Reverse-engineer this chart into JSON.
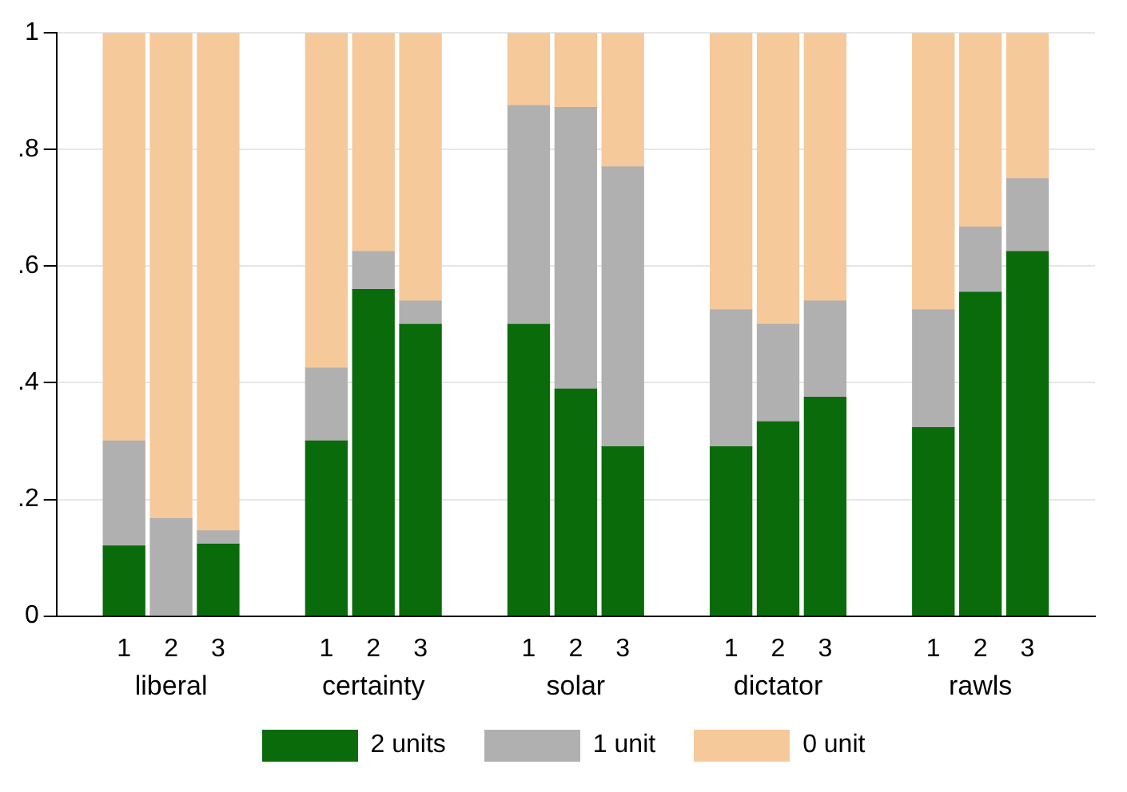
{
  "chart_data": {
    "type": "bar",
    "stacked": true,
    "categories": [
      "1",
      "2",
      "3",
      "1",
      "2",
      "3",
      "1",
      "2",
      "3",
      "1",
      "2",
      "3",
      "1",
      "2",
      "3"
    ],
    "annotations": [
      "liberal",
      "certainty",
      "solar",
      "dictator",
      "rawls"
    ],
    "series": [
      {
        "name": "2 units",
        "color": "#0a6b0a",
        "values": [
          0.12,
          0,
          0.123,
          0.3,
          0.56,
          0.5,
          0.5,
          0.389,
          0.29,
          0.29,
          0.333,
          0.375,
          0.323,
          0.555,
          0.625
        ]
      },
      {
        "name": "1 unit",
        "color": "#b0b0b0",
        "values": [
          0.18,
          0.167,
          0.023,
          0.125,
          0.065,
          0.04,
          0.375,
          0.483,
          0.48,
          0.235,
          0.167,
          0.165,
          0.202,
          0.112,
          0.125
        ]
      },
      {
        "name": "0 unit",
        "color": "#f5c99a",
        "values": [
          0.7,
          0.833,
          0.854,
          0.575,
          0.375,
          0.46,
          0.125,
          0.128,
          0.23,
          0.475,
          0.5,
          0.46,
          0.475,
          0.333,
          0.25
        ]
      }
    ],
    "ylim": [
      0,
      1
    ],
    "yticks": [
      0,
      {
        "value": 0.2,
        "label": ".2"
      },
      {
        "value": 0.4,
        "label": ".4"
      },
      {
        "value": 0.6,
        "label": ".6"
      },
      {
        "value": 0.8,
        "label": ".8"
      },
      1
    ],
    "grid": "y",
    "legend": "bottom"
  }
}
